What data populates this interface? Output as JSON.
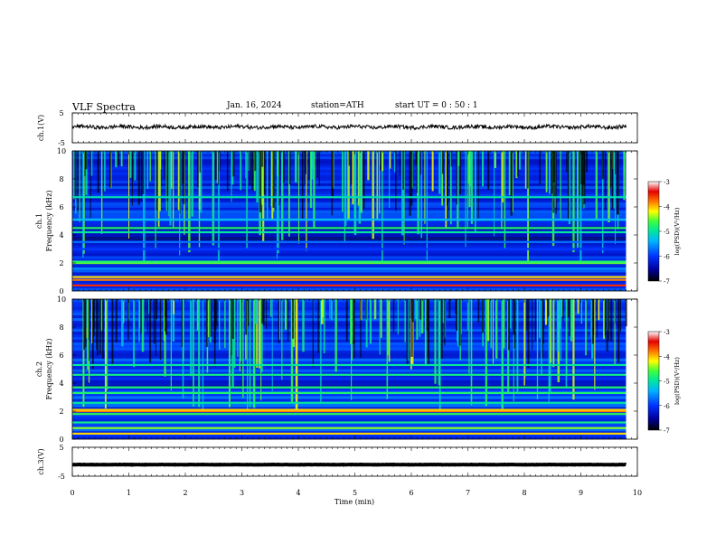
{
  "header": {
    "title": "VLF  Spectra",
    "date": "Jan. 16, 2024",
    "station": "station=ATH",
    "start": "start  UT  =   0  : 50 : 1"
  },
  "chart_data": {
    "type": "heatmap",
    "xlabel": "Time  (min)",
    "xlim": [
      0,
      10
    ],
    "xticks": [
      "0",
      "1",
      "2",
      "3",
      "4",
      "5",
      "6",
      "7",
      "8",
      "9",
      "10"
    ],
    "data_end_min": 9.8,
    "panels": [
      {
        "name": "ch1_waveform",
        "ylabel": "ch.1(V)",
        "ylim": [
          -5,
          5
        ],
        "yticks": [
          "5",
          "-5"
        ],
        "baseline": 0.3,
        "amplitude": 0.6
      },
      {
        "name": "ch1_spectrogram",
        "ylabel_line1": "ch.1",
        "ylabel_line2": "Frequency  (kHz)",
        "ylim": [
          0,
          10
        ],
        "yticks": [
          "0",
          "2",
          "4",
          "6",
          "8",
          "10"
        ],
        "colorbar": {
          "label": "log(PSD)(V²/Hz)",
          "range": [
            -7,
            -3
          ],
          "ticks": [
            "-3",
            "-4",
            "-5",
            "-6",
            "-7"
          ]
        },
        "bands_khz": [
          {
            "f": 0.4,
            "level": -3.6
          },
          {
            "f": 0.8,
            "level": -3.9
          },
          {
            "f": 1.0,
            "level": -4.2
          },
          {
            "f": 1.6,
            "level": -5.8
          },
          {
            "f": 2.0,
            "level": -4.7
          },
          {
            "f": 2.1,
            "level": -5.0
          },
          {
            "f": 3.0,
            "level": -6.1
          },
          {
            "f": 3.5,
            "level": -5.9
          },
          {
            "f": 4.2,
            "level": -5.2
          },
          {
            "f": 4.5,
            "level": -5.0
          },
          {
            "f": 5.1,
            "level": -5.6
          },
          {
            "f": 6.7,
            "level": -5.3
          }
        ],
        "background_level": -6.2
      },
      {
        "name": "ch2_spectrogram",
        "ylabel_line1": "ch.2",
        "ylabel_line2": "Frequency  (kHz)",
        "ylim": [
          0,
          10
        ],
        "yticks": [
          "0",
          "2",
          "4",
          "6",
          "8",
          "10"
        ],
        "colorbar": {
          "label": "log(PSD)(V²/Hz)",
          "range": [
            -7,
            -3
          ],
          "ticks": [
            "-3",
            "-4",
            "-5",
            "-6",
            "-7"
          ]
        },
        "bands_khz": [
          {
            "f": 0.4,
            "level": -4.2
          },
          {
            "f": 0.8,
            "level": -4.6
          },
          {
            "f": 1.2,
            "level": -5.1
          },
          {
            "f": 1.8,
            "level": -4.9
          },
          {
            "f": 2.0,
            "level": -3.9
          },
          {
            "f": 2.1,
            "level": -4.2
          },
          {
            "f": 2.6,
            "level": -5.2
          },
          {
            "f": 3.3,
            "level": -5.0
          },
          {
            "f": 3.7,
            "level": -5.0
          },
          {
            "f": 4.6,
            "level": -5.1
          },
          {
            "f": 5.3,
            "level": -5.2
          }
        ],
        "background_level": -6.1
      },
      {
        "name": "ch3_waveform",
        "ylabel": "ch.3(V)",
        "ylim": [
          -5,
          5
        ],
        "yticks": [
          "5",
          "-5"
        ],
        "baseline": -1.0,
        "amplitude": 0.05
      }
    ],
    "colors": {
      "colormap": [
        "#000000",
        "#0000a0",
        "#0033ff",
        "#00b4ff",
        "#00e6a0",
        "#3cff3c",
        "#ffff00",
        "#ff7800",
        "#e60000",
        "#ffffff"
      ]
    }
  }
}
